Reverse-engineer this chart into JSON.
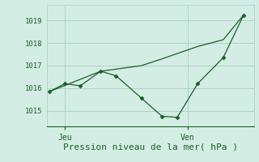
{
  "background_color": "#d4ede4",
  "grid_color": "#aad4c4",
  "line_color": "#1a5e28",
  "marker_color": "#1a5e28",
  "xlabel": "Pression niveau de la mer( hPa )",
  "ylim": [
    1014.3,
    1019.7
  ],
  "yticks": [
    1015,
    1016,
    1017,
    1018,
    1019
  ],
  "xtick_labels": [
    "Jeu",
    "Ven"
  ],
  "line1_x": [
    0,
    1.5,
    3,
    5,
    6.5,
    9,
    11,
    12.5,
    14.5,
    17,
    19
  ],
  "line1_y": [
    1015.85,
    1016.2,
    1016.1,
    1016.75,
    1016.55,
    1015.55,
    1014.75,
    1014.7,
    1016.2,
    1017.35,
    1019.25
  ],
  "line2_x": [
    0,
    5,
    9,
    11,
    14.5,
    17,
    19
  ],
  "line2_y": [
    1015.85,
    1016.75,
    1017.0,
    1017.3,
    1017.85,
    1018.15,
    1019.25
  ],
  "jeu_x": 1.5,
  "ven_x": 13.5,
  "xlim": [
    -0.3,
    20
  ]
}
